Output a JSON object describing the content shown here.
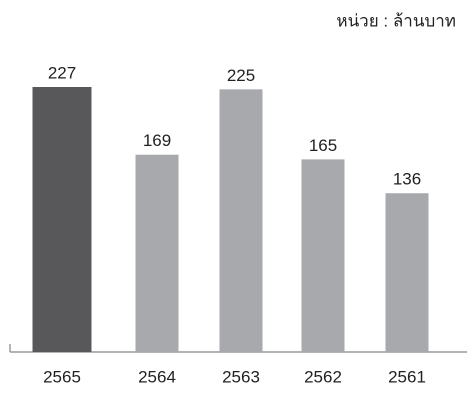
{
  "chart_data": {
    "type": "bar",
    "subtitle": "หน่วย : ล้านบาท",
    "categories": [
      "2565",
      "2564",
      "2563",
      "2562",
      "2561"
    ],
    "values": [
      227,
      169,
      225,
      165,
      136
    ],
    "colors": [
      "#58585a",
      "#a7a9ac",
      "#a7a9ac",
      "#a7a9ac",
      "#a7a9ac"
    ]
  }
}
